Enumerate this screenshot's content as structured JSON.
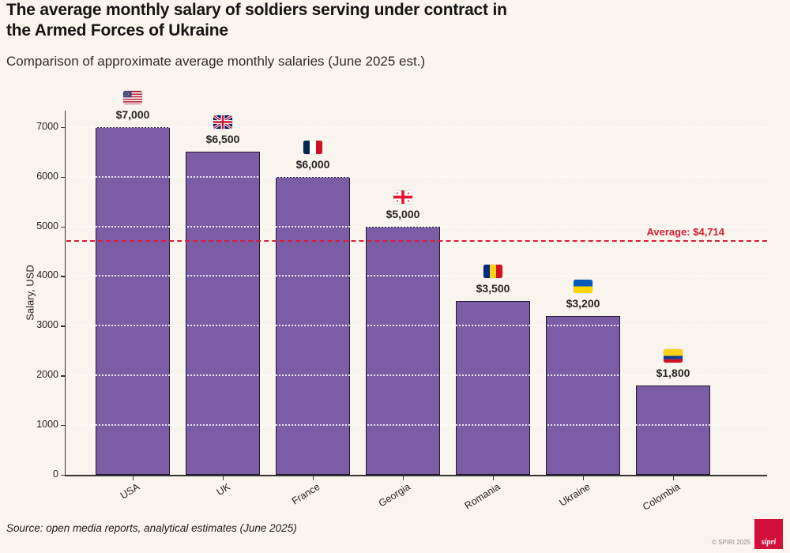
{
  "header": {
    "title": "The average monthly salary of soldiers serving under contract in the Armed Forces of Ukraine",
    "subtitle": "Comparison of approximate average monthly salaries (June 2025 est.)"
  },
  "chart_data": {
    "type": "bar",
    "title": "The average monthly salary of soldiers serving under contract in the Armed Forces of Ukraine",
    "subtitle": "Comparison of approximate average monthly salaries (June 2025 est.)",
    "categories": [
      "USA",
      "UK",
      "France",
      "Georgia",
      "Romania",
      "Ukraine",
      "Colombia"
    ],
    "values": [
      7000,
      6500,
      6000,
      5000,
      3500,
      3200,
      1800
    ],
    "value_labels": [
      "$7,000",
      "$6,500",
      "$6,000",
      "$5,000",
      "$3,500",
      "$3,200",
      "$1,800"
    ],
    "flag_icons": [
      "usa",
      "uk",
      "france",
      "georgia",
      "romania",
      "ukraine",
      "colombia"
    ],
    "xlabel": "",
    "ylabel": "Salary, USD",
    "yticks": [
      0,
      1000,
      2000,
      3000,
      4000,
      5000,
      6000,
      7000
    ],
    "ylim": [
      0,
      7330
    ],
    "grid": true,
    "legend": "none",
    "average_line": {
      "value": 4714,
      "label": "Average: $4,714"
    },
    "colors": {
      "background": "#f9f4ed",
      "bar": "#7b5da6",
      "bar_edge": "#241634",
      "average_red": "#d41f3a"
    }
  },
  "footer": {
    "source": "Source: open media reports, analytical estimates (June 2025)",
    "copyright": "© SPIRI 2025",
    "logo_text": "sipri",
    "logo_color": "#d2103c"
  }
}
